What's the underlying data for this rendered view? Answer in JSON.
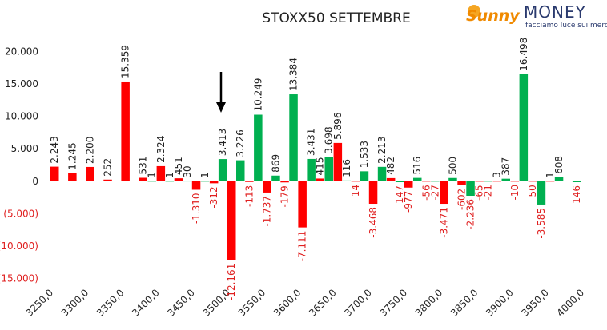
{
  "chart_data": {
    "type": "bar",
    "title": "STOXX50 SETTEMBRE",
    "logo": {
      "brand1": "Sunny",
      "brand2": "MONEY",
      "tagline": "facciamo luce sui mercati"
    },
    "x": [
      3250,
      3275,
      3300,
      3325,
      3350,
      3375,
      3400,
      3425,
      3450,
      3475,
      3500,
      3525,
      3550,
      3575,
      3600,
      3625,
      3650,
      3675,
      3700,
      3725,
      3750,
      3775,
      3800,
      3825,
      3850,
      3875,
      3900,
      3925,
      3950,
      3975
    ],
    "series": [
      {
        "color": "#ff0000",
        "values": [
          2243,
          1245,
          2200,
          252,
          15359,
          531,
          2324,
          451,
          -1310,
          -312,
          -12161,
          -113,
          -1737,
          -179,
          -7111,
          415,
          5896,
          -14,
          -3468,
          482,
          -977,
          -56,
          -3471,
          -602,
          -65,
          3,
          -10,
          -50,
          1,
          null
        ],
        "value_labels": [
          "2.243",
          "1.245",
          "2.200",
          "252",
          "15.359",
          "531",
          "2.324",
          "451",
          "-1.310",
          "-312",
          "-12.161",
          "-113",
          "-1.737",
          "-179",
          "-7.111",
          "415",
          "5.896",
          "-14",
          "-3.468",
          "482",
          "-977",
          "-56",
          "-3.471",
          "-602",
          "-65",
          "3",
          "-10",
          "-50",
          "1",
          null
        ]
      },
      {
        "color": "#00b050",
        "values": [
          null,
          null,
          null,
          null,
          null,
          1,
          1,
          30,
          1,
          3413,
          3226,
          10249,
          869,
          13384,
          3431,
          3698,
          116,
          1533,
          2213,
          -147,
          516,
          -27,
          500,
          -2236,
          -21,
          387,
          16498,
          -3585,
          608,
          -146
        ],
        "value_labels": [
          null,
          null,
          null,
          null,
          null,
          "1",
          "1",
          "30",
          "1",
          "3.413",
          "3.226",
          "10.249",
          "869",
          "13.384",
          "3.431",
          "3.698",
          "116",
          "1.533",
          "2.213",
          "-147",
          "516",
          "-27",
          "500",
          "-2.236",
          "-21",
          "387",
          "16.498",
          "-3.585",
          "608",
          "-146"
        ]
      }
    ],
    "xlim": [
      3250,
      4000
    ],
    "xticks": [
      {
        "value": 3250,
        "label": "3250,0"
      },
      {
        "value": 3300,
        "label": "3300,0"
      },
      {
        "value": 3350,
        "label": "3350,0"
      },
      {
        "value": 3400,
        "label": "3400,0"
      },
      {
        "value": 3450,
        "label": "3450,0"
      },
      {
        "value": 3500,
        "label": "3500,0"
      },
      {
        "value": 3550,
        "label": "3550,0"
      },
      {
        "value": 3600,
        "label": "3600,0"
      },
      {
        "value": 3650,
        "label": "3650,0"
      },
      {
        "value": 3700,
        "label": "3700,0"
      },
      {
        "value": 3750,
        "label": "3750,0"
      },
      {
        "value": 3800,
        "label": "3800,0"
      },
      {
        "value": 3850,
        "label": "3850,0"
      },
      {
        "value": 3900,
        "label": "3900,0"
      },
      {
        "value": 3950,
        "label": "3950,0"
      },
      {
        "value": 4000,
        "label": "4000,0"
      }
    ],
    "ylim": [
      -17000,
      22000
    ],
    "yticks": [
      {
        "value": 20000,
        "label": "20.000"
      },
      {
        "value": 15000,
        "label": "15.000"
      },
      {
        "value": 10000,
        "label": "10.000"
      },
      {
        "value": 5000,
        "label": "5.000"
      },
      0,
      {
        "value": -5000,
        "label": "(5.000)"
      },
      {
        "value": -10000,
        "label": "(10.000)"
      },
      {
        "value": -15000,
        "label": "(15.000)"
      }
    ],
    "negative_color": "#e02020",
    "grid": false
  }
}
